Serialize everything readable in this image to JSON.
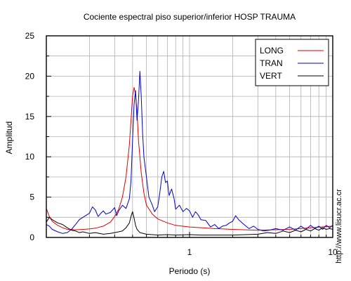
{
  "chart_data": {
    "type": "line",
    "title": "Cociente espectral piso superior/inferior  HOSP TRAUMA",
    "xlabel": "Periodo (s)",
    "ylabel": "Amplitud",
    "xscale": "log",
    "xlim": [
      0.1,
      10
    ],
    "ylim": [
      0,
      25
    ],
    "x_tick_labels": [
      "1",
      "10"
    ],
    "y_ticks": [
      0,
      5,
      10,
      15,
      20,
      25
    ],
    "grid": true,
    "legend_position": "top-right",
    "side_note": "http://www.lisucr.ac.cr",
    "series": [
      {
        "name": "LONG",
        "color": "#e00000",
        "points": [
          [
            0.1,
            3.6
          ],
          [
            0.105,
            2.6
          ],
          [
            0.11,
            2.0
          ],
          [
            0.12,
            1.5
          ],
          [
            0.13,
            1.2
          ],
          [
            0.14,
            1.0
          ],
          [
            0.16,
            0.95
          ],
          [
            0.18,
            1.0
          ],
          [
            0.2,
            1.05
          ],
          [
            0.22,
            1.15
          ],
          [
            0.25,
            1.4
          ],
          [
            0.28,
            1.9
          ],
          [
            0.3,
            2.6
          ],
          [
            0.32,
            3.5
          ],
          [
            0.34,
            5.0
          ],
          [
            0.36,
            7.5
          ],
          [
            0.38,
            11.5
          ],
          [
            0.39,
            14.5
          ],
          [
            0.4,
            17.5
          ],
          [
            0.41,
            18.6
          ],
          [
            0.42,
            17.8
          ],
          [
            0.43,
            15.5
          ],
          [
            0.44,
            12.0
          ],
          [
            0.46,
            8.0
          ],
          [
            0.48,
            5.5
          ],
          [
            0.5,
            4.0
          ],
          [
            0.55,
            2.9
          ],
          [
            0.6,
            2.3
          ],
          [
            0.7,
            1.8
          ],
          [
            0.8,
            1.5
          ],
          [
            1.0,
            1.3
          ],
          [
            1.5,
            1.1
          ],
          [
            2.0,
            1.0
          ],
          [
            3.0,
            0.9
          ],
          [
            5.0,
            1.0
          ],
          [
            7.0,
            1.2
          ],
          [
            10.0,
            1.4
          ]
        ]
      },
      {
        "name": "TRAN",
        "color": "#0000d0",
        "points": [
          [
            0.1,
            1.6
          ],
          [
            0.105,
            1.4
          ],
          [
            0.11,
            1.0
          ],
          [
            0.12,
            0.7
          ],
          [
            0.13,
            0.5
          ],
          [
            0.14,
            0.6
          ],
          [
            0.15,
            1.0
          ],
          [
            0.16,
            1.6
          ],
          [
            0.17,
            2.2
          ],
          [
            0.18,
            2.5
          ],
          [
            0.2,
            3.0
          ],
          [
            0.21,
            3.8
          ],
          [
            0.22,
            3.4
          ],
          [
            0.23,
            2.6
          ],
          [
            0.24,
            3.0
          ],
          [
            0.25,
            3.3
          ],
          [
            0.26,
            2.9
          ],
          [
            0.28,
            3.1
          ],
          [
            0.3,
            3.7
          ],
          [
            0.31,
            2.7
          ],
          [
            0.32,
            3.3
          ],
          [
            0.34,
            4.0
          ],
          [
            0.36,
            3.6
          ],
          [
            0.38,
            4.8
          ],
          [
            0.39,
            7.0
          ],
          [
            0.4,
            12.0
          ],
          [
            0.41,
            16.5
          ],
          [
            0.42,
            18.2
          ],
          [
            0.43,
            14.5
          ],
          [
            0.44,
            17.0
          ],
          [
            0.45,
            20.6
          ],
          [
            0.46,
            17.5
          ],
          [
            0.47,
            13.0
          ],
          [
            0.48,
            10.0
          ],
          [
            0.5,
            7.5
          ],
          [
            0.52,
            5.0
          ],
          [
            0.55,
            4.0
          ],
          [
            0.57,
            3.2
          ],
          [
            0.6,
            3.8
          ],
          [
            0.62,
            5.5
          ],
          [
            0.64,
            7.5
          ],
          [
            0.66,
            8.2
          ],
          [
            0.68,
            6.8
          ],
          [
            0.7,
            7.0
          ],
          [
            0.72,
            5.2
          ],
          [
            0.75,
            6.0
          ],
          [
            0.78,
            4.8
          ],
          [
            0.8,
            3.5
          ],
          [
            0.85,
            4.0
          ],
          [
            0.9,
            3.2
          ],
          [
            0.95,
            3.6
          ],
          [
            1.0,
            3.3
          ],
          [
            1.05,
            2.5
          ],
          [
            1.1,
            3.2
          ],
          [
            1.15,
            2.8
          ],
          [
            1.2,
            2.2
          ],
          [
            1.3,
            2.1
          ],
          [
            1.4,
            1.3
          ],
          [
            1.5,
            1.6
          ],
          [
            1.6,
            1.1
          ],
          [
            1.7,
            1.4
          ],
          [
            1.8,
            1.5
          ],
          [
            1.9,
            1.8
          ],
          [
            2.0,
            2.0
          ],
          [
            2.1,
            2.7
          ],
          [
            2.2,
            2.2
          ],
          [
            2.4,
            1.6
          ],
          [
            2.6,
            1.1
          ],
          [
            2.8,
            1.4
          ],
          [
            3.0,
            1.0
          ],
          [
            3.3,
            0.8
          ],
          [
            3.6,
            0.9
          ],
          [
            4.0,
            1.1
          ],
          [
            4.5,
            0.9
          ],
          [
            5.0,
            1.3
          ],
          [
            5.5,
            0.9
          ],
          [
            6.0,
            1.4
          ],
          [
            6.5,
            1.0
          ],
          [
            7.0,
            1.5
          ],
          [
            7.5,
            1.1
          ],
          [
            8.0,
            1.4
          ],
          [
            8.5,
            1.0
          ],
          [
            9.0,
            1.5
          ],
          [
            9.5,
            1.2
          ],
          [
            10.0,
            1.5
          ]
        ]
      },
      {
        "name": "VERT",
        "color": "#000000",
        "points": [
          [
            0.1,
            1.9
          ],
          [
            0.105,
            2.5
          ],
          [
            0.11,
            2.2
          ],
          [
            0.12,
            1.8
          ],
          [
            0.13,
            1.6
          ],
          [
            0.14,
            1.2
          ],
          [
            0.15,
            0.9
          ],
          [
            0.16,
            0.8
          ],
          [
            0.17,
            0.6
          ],
          [
            0.18,
            0.7
          ],
          [
            0.2,
            0.5
          ],
          [
            0.22,
            0.6
          ],
          [
            0.25,
            0.4
          ],
          [
            0.28,
            0.5
          ],
          [
            0.3,
            0.6
          ],
          [
            0.32,
            0.7
          ],
          [
            0.34,
            0.8
          ],
          [
            0.36,
            1.2
          ],
          [
            0.38,
            1.8
          ],
          [
            0.39,
            2.6
          ],
          [
            0.4,
            3.2
          ],
          [
            0.41,
            2.4
          ],
          [
            0.42,
            1.5
          ],
          [
            0.43,
            1.0
          ],
          [
            0.45,
            0.6
          ],
          [
            0.5,
            0.4
          ],
          [
            0.6,
            0.3
          ],
          [
            0.7,
            0.35
          ],
          [
            0.8,
            0.3
          ],
          [
            1.0,
            0.35
          ],
          [
            1.2,
            0.3
          ],
          [
            1.5,
            0.3
          ],
          [
            2.0,
            0.3
          ],
          [
            2.5,
            0.35
          ],
          [
            3.0,
            0.4
          ],
          [
            3.5,
            0.6
          ],
          [
            4.0,
            0.5
          ],
          [
            4.5,
            0.8
          ],
          [
            5.0,
            0.6
          ],
          [
            5.5,
            0.9
          ],
          [
            6.0,
            0.7
          ],
          [
            6.5,
            1.0
          ],
          [
            7.0,
            0.8
          ],
          [
            7.5,
            1.1
          ],
          [
            8.0,
            0.9
          ],
          [
            8.5,
            1.2
          ],
          [
            9.0,
            1.0
          ],
          [
            9.5,
            1.1
          ],
          [
            10.0,
            1.0
          ]
        ]
      }
    ]
  }
}
